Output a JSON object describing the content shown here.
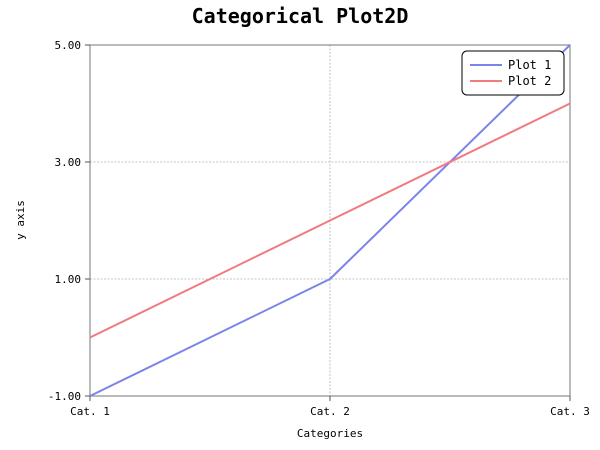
{
  "chart_data": {
    "type": "line",
    "title": "Categorical Plot2D",
    "xlabel": "Categories",
    "ylabel": "y axis",
    "categories": [
      "Cat. 1",
      "Cat. 2",
      "Cat. 3"
    ],
    "ylim": [
      -1,
      5
    ],
    "yticks": [
      -1,
      1,
      3,
      5
    ],
    "ytick_labels": [
      "-1.00",
      "1.00",
      "3.00",
      "5.00"
    ],
    "grid": true,
    "legend_position": "top-right",
    "series": [
      {
        "name": "Plot 1",
        "values": [
          -1,
          1,
          5
        ],
        "color": "#7b84e8"
      },
      {
        "name": "Plot 2",
        "values": [
          0,
          2,
          4
        ],
        "color": "#f07a80"
      }
    ]
  }
}
